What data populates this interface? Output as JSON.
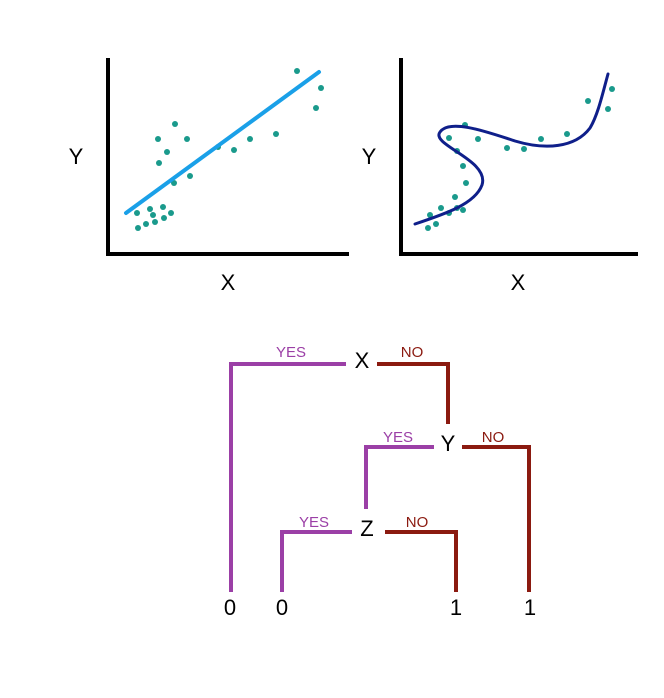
{
  "colors": {
    "point": "#1a9a8c",
    "linear_fit": "#1aa0e8",
    "curve_fit": "#0f1f8a",
    "yes": "#9b3fa6",
    "no": "#8b1a10"
  },
  "linear_plot": {
    "xlabel": "X",
    "ylabel": "Y"
  },
  "nonlinear_plot": {
    "xlabel": "X",
    "ylabel": "Y"
  },
  "tree": {
    "yes_label": "YES",
    "no_label": "NO",
    "node_x": "X",
    "node_y": "Y",
    "node_z": "Z",
    "leaf_1": "0",
    "leaf_2": "0",
    "leaf_3": "1",
    "leaf_4": "1"
  }
}
